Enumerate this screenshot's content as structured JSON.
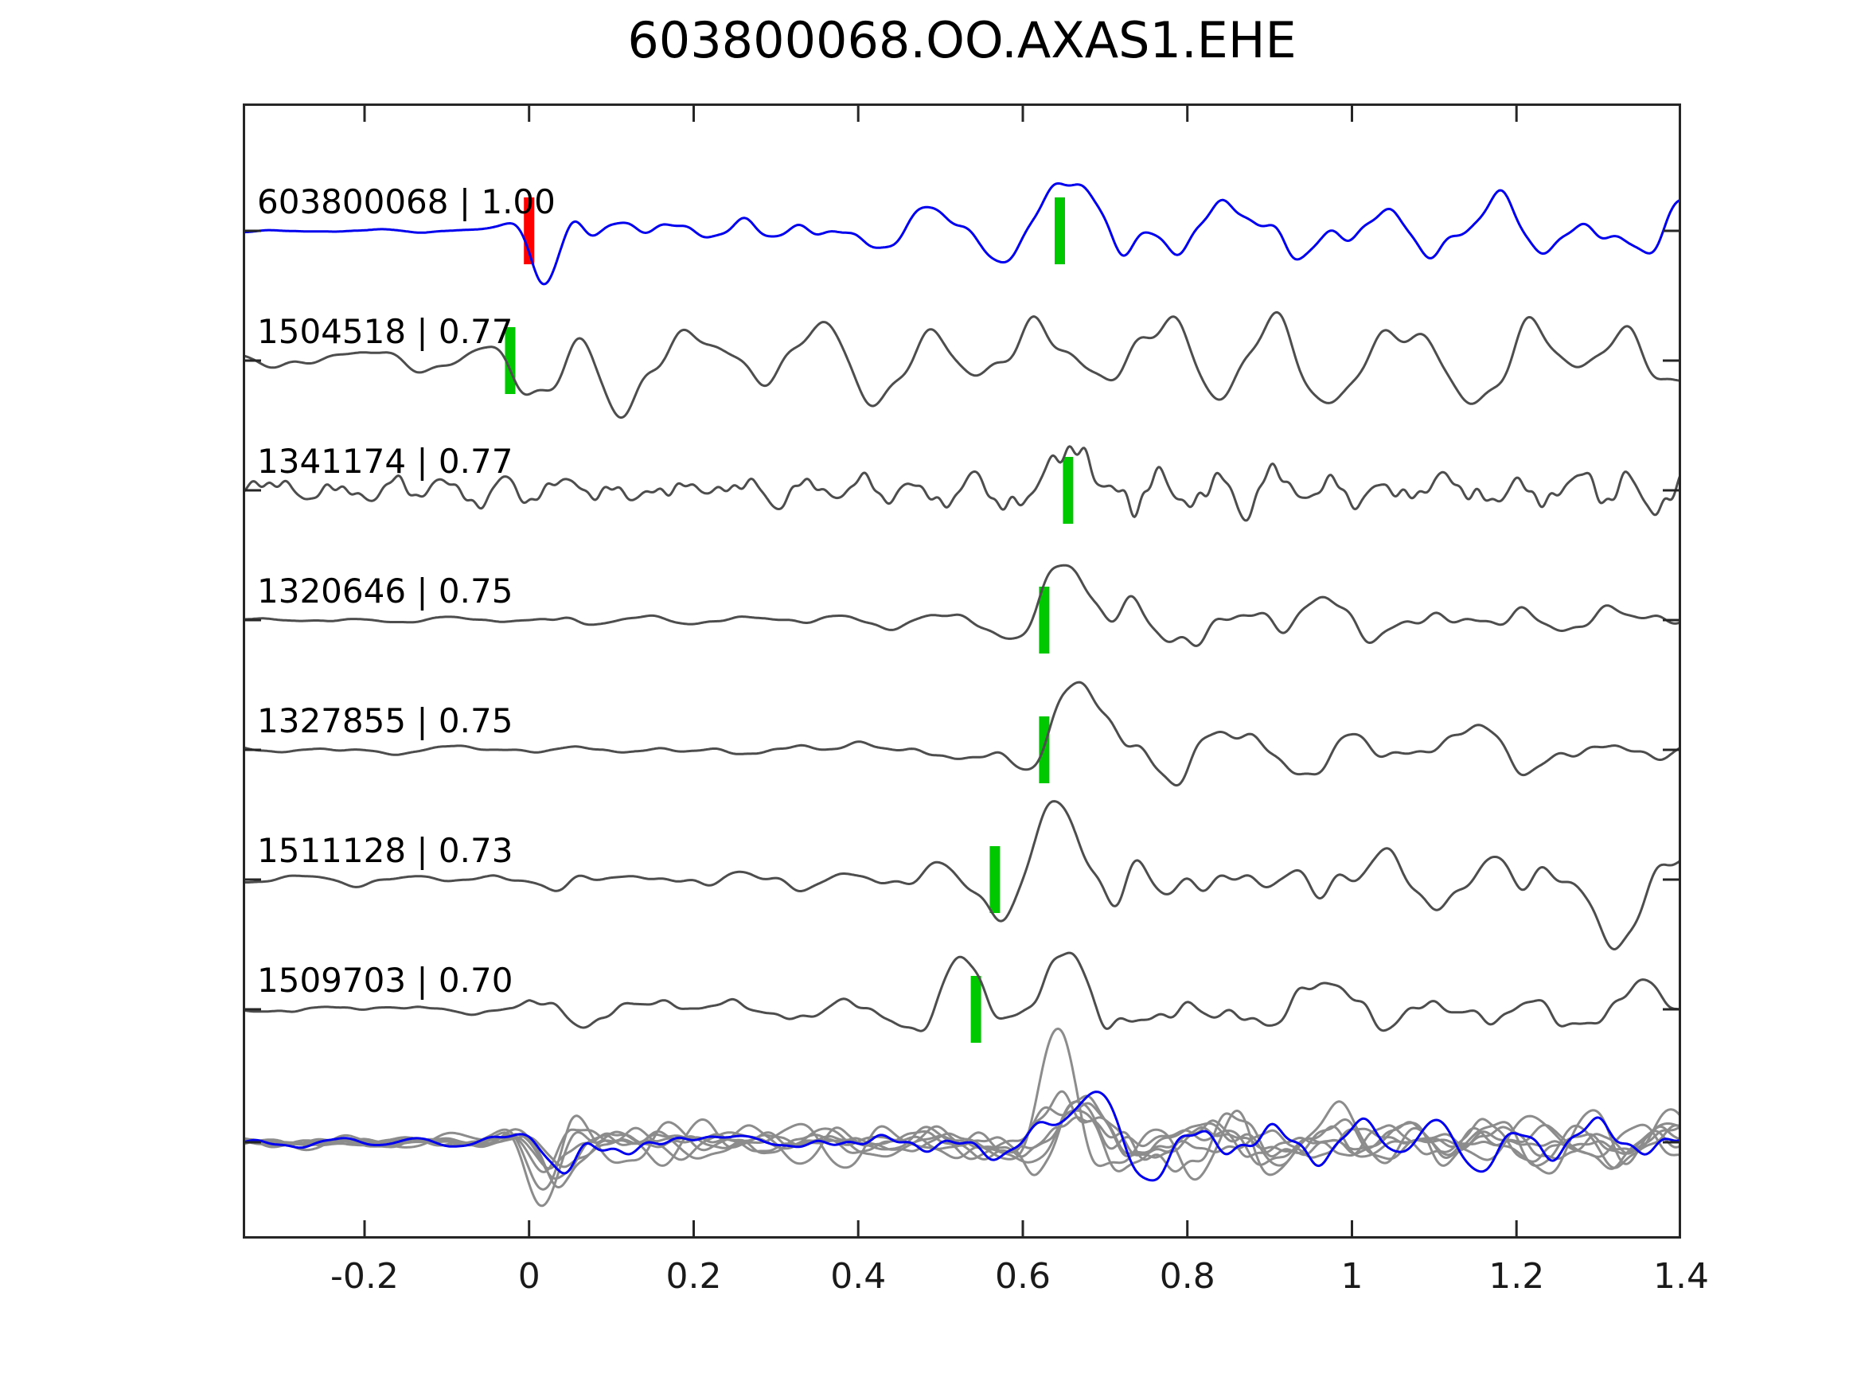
{
  "title": "603800068.OO.AXAS1.EHE",
  "colors": {
    "template_trace": "#4d4d4d",
    "reference_trace": "#0000ee",
    "overlay_trace": "#8c8c8c",
    "pick_green": "#00c800",
    "pick_red": "#ff0000",
    "axis": "#262626",
    "text": "#000000"
  },
  "chart_data": {
    "type": "line",
    "title": "603800068.OO.AXAS1.EHE",
    "xlabel": "",
    "ylabel": "",
    "xlim": [
      -0.348,
      1.4
    ],
    "grid": false,
    "legend": "none",
    "tick_direction": "in",
    "xticks": [
      -0.2,
      0,
      0.2,
      0.4,
      0.6,
      0.8,
      1,
      1.2,
      1.4
    ],
    "xtick_labels": [
      "-0.2",
      "0",
      "0.2",
      "0.4",
      "0.6",
      "0.8",
      "1",
      "1.2",
      "1.4"
    ],
    "traces": [
      {
        "id": "603800068",
        "label": "603800068 | 1.00",
        "cc": 1.0,
        "color": "#0000ee",
        "row": 0,
        "picks": [
          {
            "x": 0.0,
            "color": "#ff0000"
          },
          {
            "x": 0.645,
            "color": "#00c800"
          }
        ],
        "seed": 11,
        "freq": 9,
        "envelope": [
          [
            -0.348,
            2
          ],
          [
            -0.02,
            2
          ],
          [
            0,
            6
          ],
          [
            0.05,
            30
          ],
          [
            0.15,
            25
          ],
          [
            0.3,
            28
          ],
          [
            0.45,
            22
          ],
          [
            0.55,
            22
          ],
          [
            0.6,
            30
          ],
          [
            0.7,
            45
          ],
          [
            0.8,
            42
          ],
          [
            1,
            40
          ],
          [
            1.2,
            38
          ],
          [
            1.4,
            34
          ]
        ],
        "bursts": [
          {
            "xc": 0.018,
            "A": -52,
            "f": 9,
            "s": 0.025
          },
          {
            "xc": 0.665,
            "A": 80,
            "f": 5.5,
            "s": 0.05
          }
        ]
      },
      {
        "id": "1504518",
        "label": "1504518 | 0.77",
        "cc": 0.77,
        "color": "#4d4d4d",
        "row": 1,
        "picks": [
          {
            "x": -0.023,
            "color": "#00c800"
          }
        ],
        "seed": 23,
        "freq": 7,
        "envelope": [
          [
            -0.348,
            14
          ],
          [
            -0.15,
            20
          ],
          [
            -0.05,
            28
          ],
          [
            0,
            55
          ],
          [
            0.08,
            65
          ],
          [
            0.2,
            48
          ],
          [
            0.35,
            42
          ],
          [
            0.5,
            50
          ],
          [
            0.62,
            65
          ],
          [
            0.75,
            60
          ],
          [
            0.9,
            55
          ],
          [
            1.05,
            50
          ],
          [
            1.2,
            58
          ],
          [
            1.4,
            48
          ]
        ],
        "bursts": [
          {
            "xc": 0.025,
            "A": -70,
            "f": 6,
            "s": 0.04
          },
          {
            "xc": 0.625,
            "A": 65,
            "f": 5,
            "s": 0.05
          }
        ]
      },
      {
        "id": "1341174",
        "label": "1341174 | 0.77",
        "cc": 0.77,
        "color": "#4d4d4d",
        "row": 2,
        "picks": [
          {
            "x": 0.655,
            "color": "#00c800"
          }
        ],
        "seed": 37,
        "freq": 16,
        "envelope": [
          [
            -0.348,
            16
          ],
          [
            0,
            17
          ],
          [
            0.2,
            18
          ],
          [
            0.4,
            16
          ],
          [
            0.55,
            20
          ],
          [
            0.62,
            30
          ],
          [
            0.7,
            40
          ],
          [
            0.85,
            26
          ],
          [
            1,
            20
          ],
          [
            1.15,
            24
          ],
          [
            1.3,
            26
          ],
          [
            1.4,
            28
          ]
        ],
        "bursts": [
          {
            "xc": 0.66,
            "A": 68,
            "f": 6,
            "s": 0.045
          }
        ]
      },
      {
        "id": "1320646",
        "label": "1320646 | 0.75",
        "cc": 0.75,
        "color": "#4d4d4d",
        "row": 3,
        "picks": [
          {
            "x": 0.626,
            "color": "#00c800"
          }
        ],
        "seed": 47,
        "freq": 8,
        "envelope": [
          [
            -0.348,
            2.5
          ],
          [
            0,
            3
          ],
          [
            0.03,
            10
          ],
          [
            0.1,
            4
          ],
          [
            0.25,
            5
          ],
          [
            0.4,
            7
          ],
          [
            0.5,
            8
          ],
          [
            0.58,
            14
          ],
          [
            0.66,
            30
          ],
          [
            0.75,
            45
          ],
          [
            0.9,
            30
          ],
          [
            1.05,
            25
          ],
          [
            1.2,
            24
          ],
          [
            1.4,
            16
          ]
        ],
        "bursts": [
          {
            "xc": 0.66,
            "A": 85,
            "f": 5.5,
            "s": 0.05
          }
        ]
      },
      {
        "id": "1327855",
        "label": "1327855 | 0.75",
        "cc": 0.75,
        "color": "#4d4d4d",
        "row": 4,
        "picks": [
          {
            "x": 0.626,
            "color": "#00c800"
          }
        ],
        "seed": 59,
        "freq": 8,
        "envelope": [
          [
            -0.348,
            4
          ],
          [
            0,
            5
          ],
          [
            0.15,
            6
          ],
          [
            0.3,
            9
          ],
          [
            0.45,
            11
          ],
          [
            0.55,
            14
          ],
          [
            0.63,
            25
          ],
          [
            0.72,
            45
          ],
          [
            0.85,
            32
          ],
          [
            1,
            26
          ],
          [
            1.2,
            26
          ],
          [
            1.4,
            18
          ]
        ],
        "bursts": [
          {
            "xc": 0.665,
            "A": 85,
            "f": 5.5,
            "s": 0.05
          }
        ]
      },
      {
        "id": "1511128",
        "label": "1511128 | 0.73",
        "cc": 0.73,
        "color": "#4d4d4d",
        "row": 5,
        "picks": [
          {
            "x": 0.566,
            "color": "#00c800"
          }
        ],
        "seed": 67,
        "freq": 9,
        "envelope": [
          [
            -0.348,
            5
          ],
          [
            -0.05,
            6
          ],
          [
            0,
            16
          ],
          [
            0.1,
            11
          ],
          [
            0.25,
            12
          ],
          [
            0.4,
            13
          ],
          [
            0.5,
            16
          ],
          [
            0.56,
            22
          ],
          [
            0.64,
            30
          ],
          [
            0.72,
            48
          ],
          [
            0.85,
            38
          ],
          [
            1,
            36
          ],
          [
            1.15,
            30
          ],
          [
            1.25,
            35
          ],
          [
            1.32,
            40
          ],
          [
            1.4,
            28
          ]
        ],
        "bursts": [
          {
            "xc": 0.645,
            "A": 82,
            "f": 5.5,
            "s": 0.045
          },
          {
            "xc": 1.3,
            "A": -68,
            "f": 4.5,
            "s": 0.05
          }
        ]
      },
      {
        "id": "1509703",
        "label": "1509703 | 0.70",
        "cc": 0.7,
        "color": "#4d4d4d",
        "row": 6,
        "picks": [
          {
            "x": 0.543,
            "color": "#00c800"
          }
        ],
        "seed": 79,
        "freq": 9,
        "envelope": [
          [
            -0.348,
            4
          ],
          [
            -0.02,
            5
          ],
          [
            0,
            16
          ],
          [
            0.08,
            18
          ],
          [
            0.2,
            12
          ],
          [
            0.35,
            14
          ],
          [
            0.45,
            18
          ],
          [
            0.52,
            22
          ],
          [
            0.6,
            25
          ],
          [
            0.7,
            35
          ],
          [
            0.85,
            28
          ],
          [
            1,
            30
          ],
          [
            1.15,
            24
          ],
          [
            1.3,
            28
          ],
          [
            1.4,
            18
          ]
        ],
        "bursts": [
          {
            "xc": 0.525,
            "A": 58,
            "f": 6.5,
            "s": 0.04
          },
          {
            "xc": 0.655,
            "A": 74,
            "f": 5.5,
            "s": 0.045
          }
        ]
      }
    ],
    "overlay": {
      "row": 7,
      "description": "all aligned traces stacked: gray members with blue reference on top",
      "envelope": [
        [
          -0.348,
          5
        ],
        [
          0,
          6
        ],
        [
          0.05,
          25
        ],
        [
          0.15,
          18
        ],
        [
          0.3,
          16
        ],
        [
          0.45,
          15
        ],
        [
          0.55,
          18
        ],
        [
          0.65,
          35
        ],
        [
          0.78,
          30
        ],
        [
          0.95,
          26
        ],
        [
          1.1,
          24
        ],
        [
          1.25,
          26
        ],
        [
          1.4,
          22
        ]
      ],
      "bursts": [
        {
          "xc": 0.025,
          "A": -45,
          "f": 8,
          "s": 0.03
        },
        {
          "xc": 0.66,
          "A": 55,
          "f": 5.5,
          "s": 0.05
        }
      ],
      "freq": 9,
      "members": [
        {
          "seed": 101,
          "scale": 1.6,
          "color": "#8c8c8c"
        },
        {
          "seed": 113,
          "scale": 1.2,
          "color": "#8c8c8c"
        },
        {
          "seed": 131,
          "scale": 0.9,
          "color": "#8c8c8c"
        },
        {
          "seed": 149,
          "scale": 0.75,
          "color": "#8c8c8c"
        },
        {
          "seed": 163,
          "scale": 1.05,
          "color": "#8c8c8c"
        },
        {
          "seed": 179,
          "scale": 0.85,
          "color": "#8c8c8c"
        },
        {
          "seed": 191,
          "scale": 0.6,
          "color": "#8c8c8c"
        },
        {
          "seed": 211,
          "scale": 1.0,
          "color": "#0000ee"
        }
      ]
    }
  }
}
